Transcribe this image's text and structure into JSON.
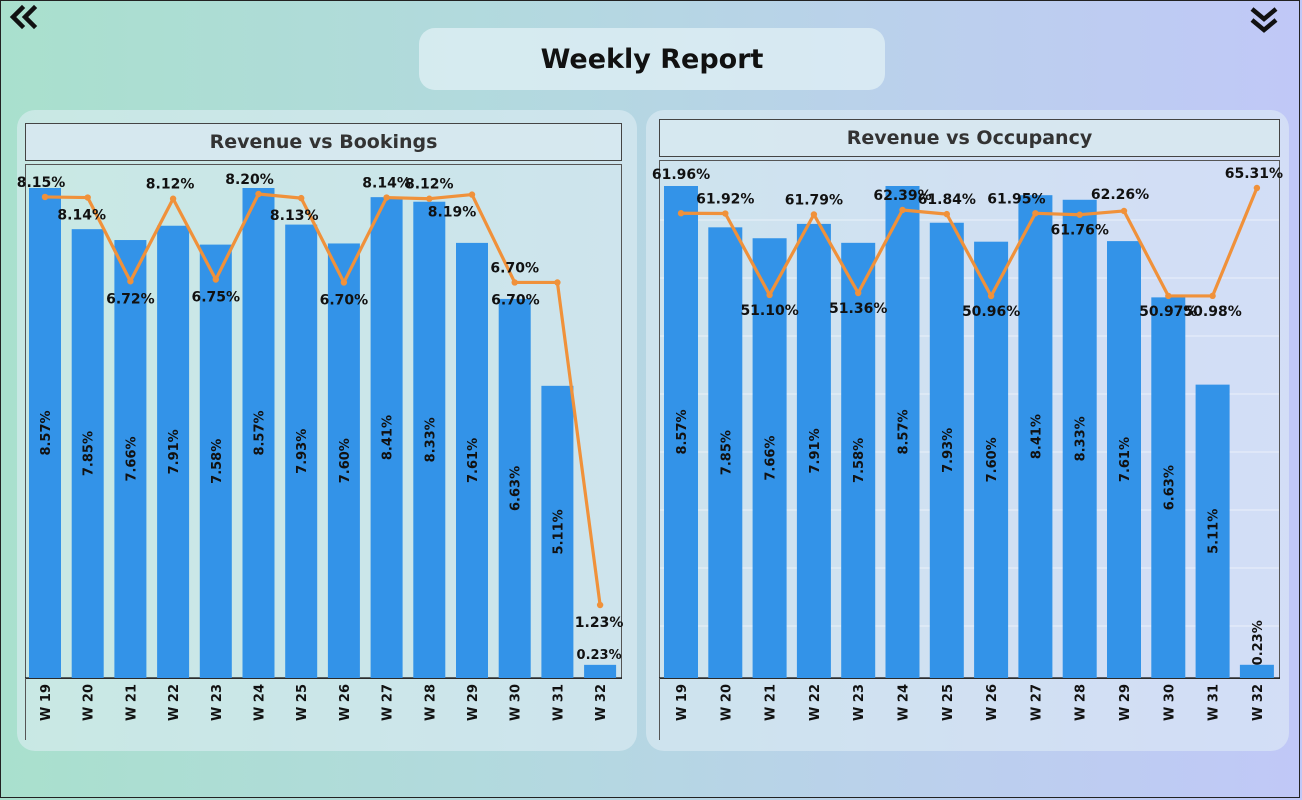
{
  "report_title": "Weekly Report",
  "nav": {
    "back_icon": "double-chevron-left-icon",
    "expand_icon": "double-chevron-down-icon"
  },
  "colors": {
    "bar": "#3393e8",
    "line": "#f0913a",
    "text": "#111111"
  },
  "chart_data": [
    {
      "type": "bar",
      "title": "Revenue vs Bookings",
      "categories": [
        "W 19",
        "W 20",
        "W 21",
        "W 22",
        "W 23",
        "W 24",
        "W 25",
        "W 26",
        "W 27",
        "W 28",
        "W 29",
        "W 30",
        "W 31",
        "W 32"
      ],
      "bar_labels": [
        "8.57%",
        "7.85%",
        "7.66%",
        "7.91%",
        "7.58%",
        "8.57%",
        "7.93%",
        "7.60%",
        "8.41%",
        "8.33%",
        "7.61%",
        "6.63%",
        "5.11%",
        "0.23%"
      ],
      "line_labels": [
        "8.15%",
        "8.14%",
        "6.72%",
        "8.12%",
        "6.75%",
        "8.20%",
        "8.13%",
        "6.70%",
        "8.14%",
        "8.12%",
        "8.19%",
        "6.70%",
        "6.70%",
        "1.23%"
      ],
      "series": [
        {
          "values": [
            8.57,
            7.85,
            7.66,
            7.91,
            7.58,
            8.57,
            7.93,
            7.6,
            8.41,
            8.33,
            7.61,
            6.63,
            5.11,
            0.23
          ]
        },
        {
          "values": [
            8.15,
            8.14,
            6.72,
            8.12,
            6.75,
            8.2,
            8.13,
            6.7,
            8.14,
            8.12,
            8.19,
            6.7,
            6.7,
            1.23
          ]
        }
      ]
    },
    {
      "type": "bar",
      "title": "Revenue vs Occupancy",
      "categories": [
        "W 19",
        "W 20",
        "W 21",
        "W 22",
        "W 23",
        "W 24",
        "W 25",
        "W 26",
        "W 27",
        "W 28",
        "W 29",
        "W 30",
        "W 31",
        "W 32"
      ],
      "bar_labels": [
        "8.57%",
        "7.85%",
        "7.66%",
        "7.91%",
        "7.58%",
        "8.57%",
        "7.93%",
        "7.60%",
        "8.41%",
        "8.33%",
        "7.61%",
        "6.63%",
        "5.11%",
        "0.23%"
      ],
      "line_labels": [
        "61.96%",
        "61.92%",
        "51.10%",
        "61.79%",
        "51.36%",
        "62.39%",
        "61.84%",
        "50.96%",
        "61.95%",
        "61.76%",
        "62.26%",
        "50.97%",
        "50.98%",
        "65.31%"
      ],
      "series": [
        {
          "values": [
            8.57,
            7.85,
            7.66,
            7.91,
            7.58,
            8.57,
            7.93,
            7.6,
            8.41,
            8.33,
            7.61,
            6.63,
            5.11,
            0.23
          ]
        },
        {
          "values": [
            61.96,
            61.92,
            51.1,
            61.79,
            51.36,
            62.39,
            61.84,
            50.96,
            61.95,
            61.76,
            62.26,
            50.97,
            50.98,
            65.31
          ]
        }
      ]
    }
  ]
}
